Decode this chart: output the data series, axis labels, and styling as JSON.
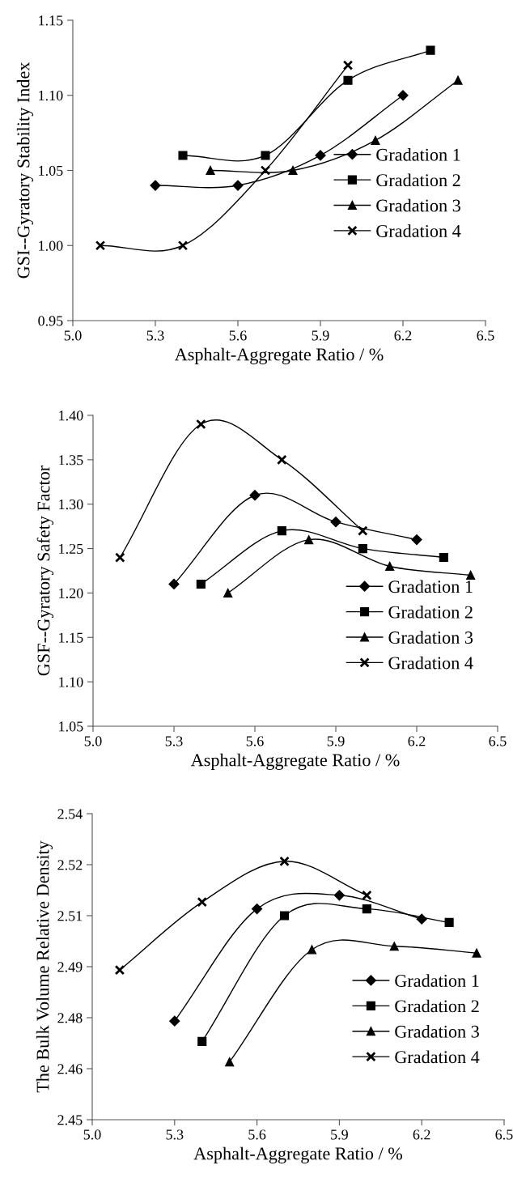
{
  "chart_data": [
    {
      "type": "line",
      "xlabel": "Asphalt-Aggregate Ratio / %",
      "ylabel": "GSI--Gyratory Stability Index",
      "xlim": [
        5.0,
        6.5
      ],
      "xticks": [
        {
          "value": 5.0,
          "label": "5.0"
        },
        {
          "value": 5.3,
          "label": "5.3"
        },
        {
          "value": 5.6,
          "label": "5.6"
        },
        {
          "value": 5.9,
          "label": "5.9"
        },
        {
          "value": 6.2,
          "label": "6.2"
        },
        {
          "value": 6.5,
          "label": "6.5"
        }
      ],
      "ylim": [
        0.95,
        1.15
      ],
      "yticks": [
        {
          "value": 0.95,
          "label": "0.95"
        },
        {
          "value": 1.0,
          "label": "1.00"
        },
        {
          "value": 1.05,
          "label": "1.05"
        },
        {
          "value": 1.1,
          "label": "1.10"
        },
        {
          "value": 1.15,
          "label": "1.15"
        }
      ],
      "grid": false,
      "legend": "center right",
      "line_style": "solid",
      "series": [
        {
          "name": "Gradation 1",
          "color": "#000000",
          "marker": "diamond",
          "x": [
            5.3,
            5.6,
            5.9,
            6.2
          ],
          "values": [
            1.04,
            1.04,
            1.06,
            1.1
          ]
        },
        {
          "name": "Gradation 2",
          "color": "#000000",
          "marker": "square",
          "x": [
            5.4,
            5.7,
            6.0,
            6.3
          ],
          "values": [
            1.06,
            1.06,
            1.11,
            1.13
          ]
        },
        {
          "name": "Gradation 3",
          "color": "#000000",
          "marker": "triangle",
          "x": [
            5.5,
            5.8,
            6.1,
            6.4
          ],
          "values": [
            1.05,
            1.05,
            1.07,
            1.11
          ]
        },
        {
          "name": "Gradation 4",
          "color": "#000000",
          "marker": "cross",
          "x": [
            5.1,
            5.4,
            5.7,
            6.0
          ],
          "values": [
            1.0,
            1.0,
            1.05,
            1.12
          ]
        }
      ]
    },
    {
      "type": "line",
      "xlabel": "Asphalt-Aggregate Ratio / %",
      "ylabel": "GSF--Gyratory Safety Factor",
      "xlim": [
        5.0,
        6.5
      ],
      "xticks": [
        {
          "value": 5.0,
          "label": "5.0"
        },
        {
          "value": 5.3,
          "label": "5.3"
        },
        {
          "value": 5.6,
          "label": "5.6"
        },
        {
          "value": 5.9,
          "label": "5.9"
        },
        {
          "value": 6.2,
          "label": "6.2"
        },
        {
          "value": 6.5,
          "label": "6.5"
        }
      ],
      "ylim": [
        1.05,
        1.4
      ],
      "yticks": [
        {
          "value": 1.05,
          "label": "1.05"
        },
        {
          "value": 1.1,
          "label": "1.10"
        },
        {
          "value": 1.15,
          "label": "1.15"
        },
        {
          "value": 1.2,
          "label": "1.20"
        },
        {
          "value": 1.25,
          "label": "1.25"
        },
        {
          "value": 1.3,
          "label": "1.30"
        },
        {
          "value": 1.35,
          "label": "1.35"
        },
        {
          "value": 1.4,
          "label": "1.40"
        }
      ],
      "grid": false,
      "legend": "lower right",
      "line_style": "solid",
      "series": [
        {
          "name": "Gradation 1",
          "color": "#000000",
          "marker": "diamond",
          "x": [
            5.3,
            5.6,
            5.9,
            6.2
          ],
          "values": [
            1.21,
            1.31,
            1.28,
            1.26
          ]
        },
        {
          "name": "Gradation 2",
          "color": "#000000",
          "marker": "square",
          "x": [
            5.4,
            5.7,
            6.0,
            6.3
          ],
          "values": [
            1.21,
            1.27,
            1.25,
            1.24
          ]
        },
        {
          "name": "Gradation 3",
          "color": "#000000",
          "marker": "triangle",
          "x": [
            5.5,
            5.8,
            6.1,
            6.4
          ],
          "values": [
            1.2,
            1.26,
            1.23,
            1.22
          ]
        },
        {
          "name": "Gradation 4",
          "color": "#000000",
          "marker": "cross",
          "x": [
            5.1,
            5.4,
            5.7,
            6.0
          ],
          "values": [
            1.24,
            1.39,
            1.35,
            1.27
          ]
        }
      ]
    },
    {
      "type": "line",
      "xlabel": "Asphalt-Aggregate Ratio / %",
      "ylabel": "The Bulk Volume Relative Density",
      "xlim": [
        5.0,
        6.5
      ],
      "xticks": [
        {
          "value": 5.0,
          "label": "5.0"
        },
        {
          "value": 5.3,
          "label": "5.3"
        },
        {
          "value": 5.6,
          "label": "5.6"
        },
        {
          "value": 5.9,
          "label": "5.9"
        },
        {
          "value": 6.2,
          "label": "6.2"
        },
        {
          "value": 6.5,
          "label": "6.5"
        }
      ],
      "ylim": [
        2.45,
        2.54
      ],
      "yticks": [
        {
          "value": 2.45,
          "label": "2.45"
        },
        {
          "value": 2.465,
          "label": "2.46"
        },
        {
          "value": 2.48,
          "label": "2.48"
        },
        {
          "value": 2.495,
          "label": "2.49"
        },
        {
          "value": 2.51,
          "label": "2.51"
        },
        {
          "value": 2.525,
          "label": "2.52"
        },
        {
          "value": 2.54,
          "label": "2.54"
        }
      ],
      "grid": false,
      "legend": "lower right",
      "line_style": "solid",
      "series": [
        {
          "name": "Gradation 1",
          "color": "#000000",
          "marker": "diamond",
          "x": [
            5.3,
            5.6,
            5.9,
            6.2
          ],
          "values": [
            2.479,
            2.512,
            2.516,
            2.509
          ]
        },
        {
          "name": "Gradation 2",
          "color": "#000000",
          "marker": "square",
          "x": [
            5.4,
            5.7,
            6.0,
            6.3
          ],
          "values": [
            2.473,
            2.51,
            2.512,
            2.508
          ]
        },
        {
          "name": "Gradation 3",
          "color": "#000000",
          "marker": "triangle",
          "x": [
            5.5,
            5.8,
            6.1,
            6.4
          ],
          "values": [
            2.467,
            2.5,
            2.501,
            2.499
          ]
        },
        {
          "name": "Gradation 4",
          "color": "#000000",
          "marker": "cross",
          "x": [
            5.1,
            5.4,
            5.7,
            6.0
          ],
          "values": [
            2.494,
            2.514,
            2.526,
            2.516
          ]
        }
      ]
    }
  ]
}
